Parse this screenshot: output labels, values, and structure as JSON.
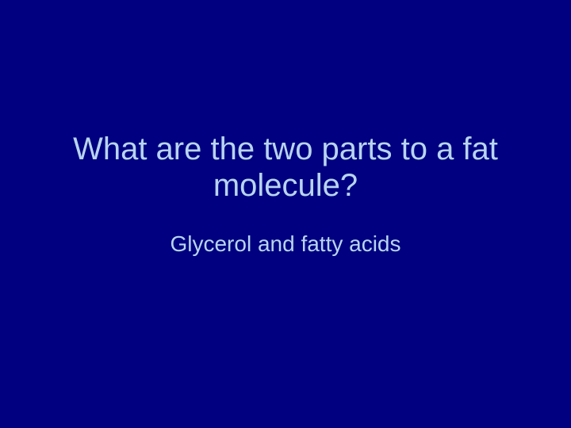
{
  "slide": {
    "question": "What are the two parts to a fat molecule?",
    "answer": "Glycerol and fatty acids",
    "background_color": "#000080",
    "text_color": "#b8d4f0",
    "question_fontsize": 40,
    "answer_fontsize": 28,
    "font_family": "Arial"
  }
}
